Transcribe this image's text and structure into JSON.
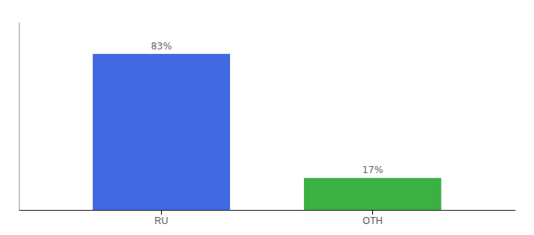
{
  "chart_data": {
    "type": "bar",
    "categories": [
      "RU",
      "OTH"
    ],
    "values": [
      83,
      17
    ],
    "value_labels": [
      "83%",
      "17%"
    ],
    "colors": [
      "#4169e1",
      "#3cb043"
    ],
    "ylim": [
      0,
      100
    ],
    "data_labels": true,
    "tick_labels": "x"
  }
}
